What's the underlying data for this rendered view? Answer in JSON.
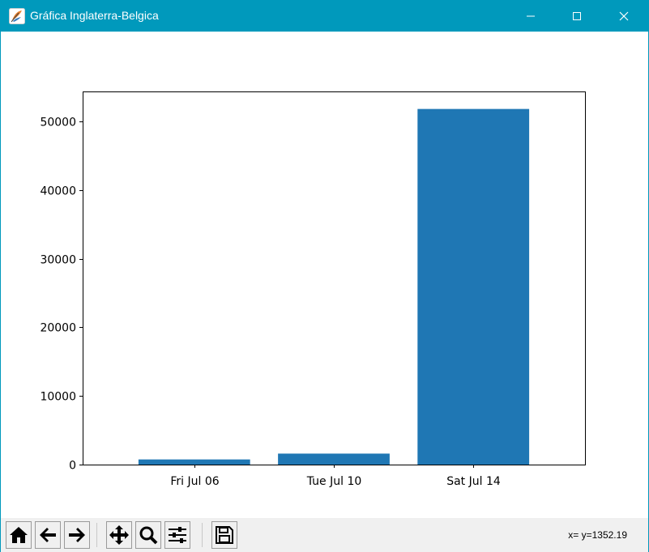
{
  "window": {
    "title": "Gráfica Inglaterra-Belgica",
    "icon": "python-feather-icon",
    "controls": [
      "minimize-icon",
      "maximize-icon",
      "close-icon"
    ]
  },
  "chart_data": {
    "type": "bar",
    "categories": [
      "Fri Jul 06",
      "Tue Jul 10",
      "Sat Jul 14"
    ],
    "values": [
      750,
      1600,
      51800
    ],
    "title": "",
    "xlabel": "",
    "ylabel": "",
    "ylim": [
      0,
      54350
    ],
    "yticks": [
      0,
      10000,
      20000,
      30000,
      40000,
      50000
    ],
    "yticklabels": [
      "0",
      "10000",
      "20000",
      "30000",
      "40000",
      "50000"
    ],
    "bar_color": "#1f77b4",
    "grid": false,
    "legend": "none"
  },
  "toolbar": {
    "buttons": [
      {
        "name": "home-icon",
        "tooltip": "Home"
      },
      {
        "name": "back-icon",
        "tooltip": "Back"
      },
      {
        "name": "forward-icon",
        "tooltip": "Forward"
      },
      {
        "name": "pan-icon",
        "tooltip": "Pan"
      },
      {
        "name": "zoom-icon",
        "tooltip": "Zoom"
      },
      {
        "name": "configure-subplots-icon",
        "tooltip": "Subplots"
      },
      {
        "name": "save-icon",
        "tooltip": "Save"
      }
    ],
    "coordinates": "x= y=1352.19"
  },
  "colors": {
    "titlebar": "#0099bc",
    "bar": "#1f77b4",
    "toolbar_bg": "#f0f0f0"
  }
}
